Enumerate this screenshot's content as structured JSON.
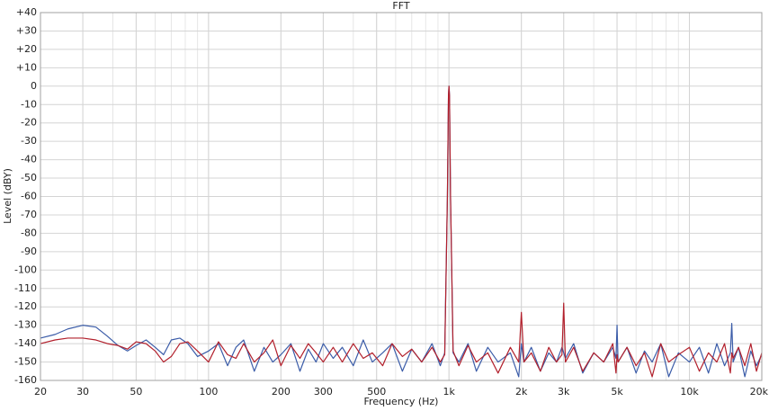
{
  "chart_data": {
    "type": "line",
    "title": "FFT",
    "x_label": "Frequency (Hz)",
    "y_label": "Level (dBY)",
    "x_scale": "log",
    "grid": true,
    "xlim": [
      20,
      20000
    ],
    "xticks": [
      20,
      30,
      50,
      100,
      200,
      300,
      500,
      {
        "value": 1000,
        "label": "1k"
      },
      {
        "value": 2000,
        "label": "2k"
      },
      {
        "value": 3000,
        "label": "3k"
      },
      {
        "value": 5000,
        "label": "5k"
      },
      {
        "value": 10000,
        "label": "10k"
      },
      {
        "value": 20000,
        "label": "20k"
      }
    ],
    "ylim": [
      -160,
      40
    ],
    "yticks": [
      -160,
      -150,
      -140,
      -130,
      -120,
      -110,
      -100,
      -90,
      -80,
      -70,
      -60,
      -50,
      -40,
      -30,
      -20,
      -10,
      0,
      {
        "value": 10,
        "label": "+10"
      },
      {
        "value": 20,
        "label": "+20"
      },
      {
        "value": 30,
        "label": "+30"
      },
      {
        "value": 40,
        "label": "+40"
      }
    ],
    "x": [
      20,
      23,
      26,
      30,
      34,
      38,
      42,
      46,
      50,
      55,
      60,
      65,
      70,
      76,
      82,
      90,
      100,
      110,
      120,
      130,
      140,
      155,
      170,
      185,
      200,
      220,
      240,
      260,
      280,
      300,
      330,
      360,
      400,
      440,
      480,
      530,
      580,
      640,
      700,
      770,
      850,
      920,
      960,
      985,
      995,
      1000,
      1005,
      1015,
      1040,
      1100,
      1200,
      1300,
      1450,
      1600,
      1800,
      1950,
      2000,
      2050,
      2200,
      2400,
      2600,
      2800,
      2950,
      3000,
      3050,
      3300,
      3600,
      4000,
      4400,
      4800,
      4950,
      5000,
      5050,
      5500,
      6000,
      6500,
      7000,
      7600,
      8200,
      9000,
      10000,
      11000,
      12000,
      13000,
      14000,
      14800,
      15000,
      15200,
      16000,
      17000,
      18000,
      19000,
      20000
    ],
    "series": [
      {
        "color": "#3b5ca8",
        "values": [
          -137,
          -135,
          -132,
          -130,
          -131,
          -136,
          -141,
          -144,
          -141,
          -138,
          -142,
          -146,
          -138,
          -137,
          -140,
          -147,
          -144,
          -140,
          -152,
          -142,
          -138,
          -155,
          -142,
          -150,
          -146,
          -140,
          -155,
          -143,
          -150,
          -140,
          -148,
          -142,
          -152,
          -138,
          -150,
          -145,
          -140,
          -155,
          -143,
          -150,
          -140,
          -152,
          -145,
          -60,
          -5,
          0,
          -5,
          -60,
          -145,
          -150,
          -140,
          -155,
          -142,
          -150,
          -145,
          -158,
          -140,
          -150,
          -142,
          -155,
          -145,
          -150,
          -142,
          -145,
          -148,
          -140,
          -156,
          -145,
          -150,
          -142,
          -148,
          -130,
          -150,
          -142,
          -156,
          -144,
          -150,
          -140,
          -158,
          -145,
          -150,
          -142,
          -156,
          -140,
          -152,
          -145,
          -129,
          -150,
          -142,
          -158,
          -144,
          -152,
          -146
        ]
      },
      {
        "color": "#b2202c",
        "values": [
          -140,
          -138,
          -137,
          -137,
          -138,
          -140,
          -141,
          -143,
          -139,
          -140,
          -144,
          -150,
          -147,
          -140,
          -139,
          -144,
          -150,
          -139,
          -146,
          -148,
          -140,
          -150,
          -145,
          -138,
          -152,
          -141,
          -148,
          -140,
          -145,
          -150,
          -142,
          -150,
          -140,
          -148,
          -145,
          -152,
          -140,
          -147,
          -143,
          -150,
          -142,
          -150,
          -146,
          -60,
          -5,
          0,
          -5,
          -60,
          -144,
          -152,
          -141,
          -150,
          -145,
          -156,
          -142,
          -150,
          -123,
          -150,
          -145,
          -155,
          -142,
          -150,
          -146,
          -118,
          -150,
          -142,
          -155,
          -145,
          -150,
          -140,
          -156,
          -146,
          -150,
          -142,
          -152,
          -145,
          -158,
          -140,
          -150,
          -146,
          -142,
          -155,
          -145,
          -150,
          -140,
          -156,
          -145,
          -148,
          -142,
          -152,
          -140,
          -155,
          -145
        ]
      }
    ]
  }
}
